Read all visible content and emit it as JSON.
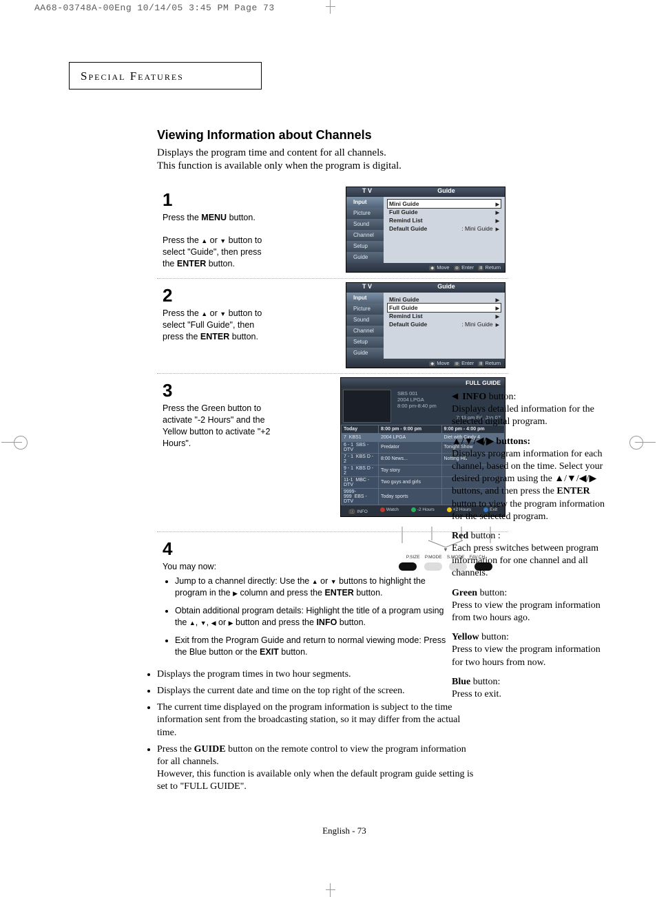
{
  "header_strip": "AA68-03748A-00Eng  10/14/05  3:45 PM  Page 73",
  "section_header": "Special Features",
  "title": "Viewing Information about Channels",
  "intro_l1": "Displays the program time and content for all channels.",
  "intro_l2": "This function is available only when the program is digital.",
  "steps": {
    "s1": {
      "num": "1",
      "text_html": "Press the <b>MENU</b> button.<br><br>Press the <span class='arrow-up'></span> or <span class='arrow-down'></span> button to select \"Guide\", then press the <b>ENTER</b> button."
    },
    "s2": {
      "num": "2",
      "text_html": "Press the <span class='arrow-up'></span> or <span class='arrow-down'></span> button to select \"Full Guide\", then press the <b>ENTER</b> button."
    },
    "s3": {
      "num": "3",
      "text_html": "Press the Green button to activate \"-2 Hours\" and the Yellow button to activate \"+2 Hours\"."
    },
    "s4": {
      "num": "4",
      "lead": "You may now:",
      "b1": "Jump to a channel directly: Use the <span class='arrow-up'></span> or <span class='arrow-down'></span> buttons to highlight the program in the <span class='arrow-right'></span> column and press the <b>ENTER</b> button.",
      "b2": "Obtain additional program details: Highlight the title of a program using the <span class='arrow-up'></span>, <span class='arrow-down'></span>, <span class='arrow-left'></span> or <span class='arrow-right'></span> button and press the <b>INFO</b> button.",
      "b3": "Exit from the Program Guide and return to normal viewing mode: Press the Blue button or the <b>EXIT</b> button."
    }
  },
  "osd": {
    "tv": "T V",
    "guide": "Guide",
    "tabs": [
      "Input",
      "Picture",
      "Sound",
      "Channel",
      "Setup",
      "Guide"
    ],
    "rows": {
      "mini": "Mini Guide",
      "full": "Full Guide",
      "remind": "Remind List",
      "default": "Default Guide",
      "default_val": ":   Mini Guide"
    },
    "foot": {
      "move": "Move",
      "enter": "Enter",
      "return": "Return"
    }
  },
  "guide": {
    "title": "FULL GUIDE",
    "pv": {
      "ch": "SBS 001",
      "prog": "2004 LPGA",
      "time": "8:00 pm-8:40 pm",
      "now": "7:43 pm  Fri, Jan 07"
    },
    "cols": {
      "today": "Today",
      "c1": "8:00 pm - 9:00 pm",
      "c2": "9:00 pm - 4:00 pm"
    },
    "rows": [
      {
        "n": "7",
        "ch": "KBS1",
        "p1": "2004 LPGA",
        "p2": "Diet with Cindy 4"
      },
      {
        "n": "6 - 1",
        "ch": "SBS - DTV",
        "p1": "Predator",
        "p2": "Tonight Show"
      },
      {
        "n": "7 - 1",
        "ch": "KBS D - 2",
        "p1": "8:00 News...",
        "p2": "Notting Hill"
      },
      {
        "n": "9 - 1",
        "ch": "KBS D - 2",
        "p1": "Toy story",
        "p2": ""
      },
      {
        "n": "11-1",
        "ch": "MBC - DTV",
        "p1": "Two guys and girls",
        "p2": ""
      },
      {
        "n": "9999-999",
        "ch": "EBS - DTV",
        "p1": "Today sports",
        "p2": ""
      }
    ],
    "legend": {
      "info": "INFO",
      "watch": "Watch",
      "m2": "-2 Hours",
      "p2": "+2 Hours",
      "exit": "Exit"
    },
    "remote": [
      "P.SIZE",
      "P.MODE",
      "S.MODE",
      "FAV.CH"
    ]
  },
  "notes": {
    "n1": "Displays the program times in two hour segments.",
    "n2": "Displays the current date and time on the top right of the screen.",
    "n3": "The current time displayed on the program information is subject to the time information sent from the broadcasting station, so it may differ from the actual time.",
    "n4": "Press the <b>GUIDE</b> button on the remote control to view the program information for all channels.<br>However, this function is available only when the default program guide setting is set to \"FULL GUIDE\"."
  },
  "sidebar": {
    "info_t": "INFO",
    "info_b": " button:\nDisplays detailed information for the selected digital program.",
    "nav_t": "▲/▼/◀/▶  buttons:",
    "nav_b": "Displays program information for each channel, based on the time. Select your desired program using the ▲/▼/◀/▶ buttons, and then press the <b>ENTER</b> button to view the program information for the selected program.",
    "red_t": "Red",
    "red_b": " button :\nEach press switches between program information for one channel and all channels.",
    "green_t": "Green",
    "green_b": " button:\nPress to view the program information from two hours ago.",
    "yellow_t": "Yellow",
    "yellow_b": " button:\n Press to view the program information for two hours from now.",
    "blue_t": "Blue",
    "blue_b": " button:\nPress to exit."
  },
  "footer": "English - 73"
}
